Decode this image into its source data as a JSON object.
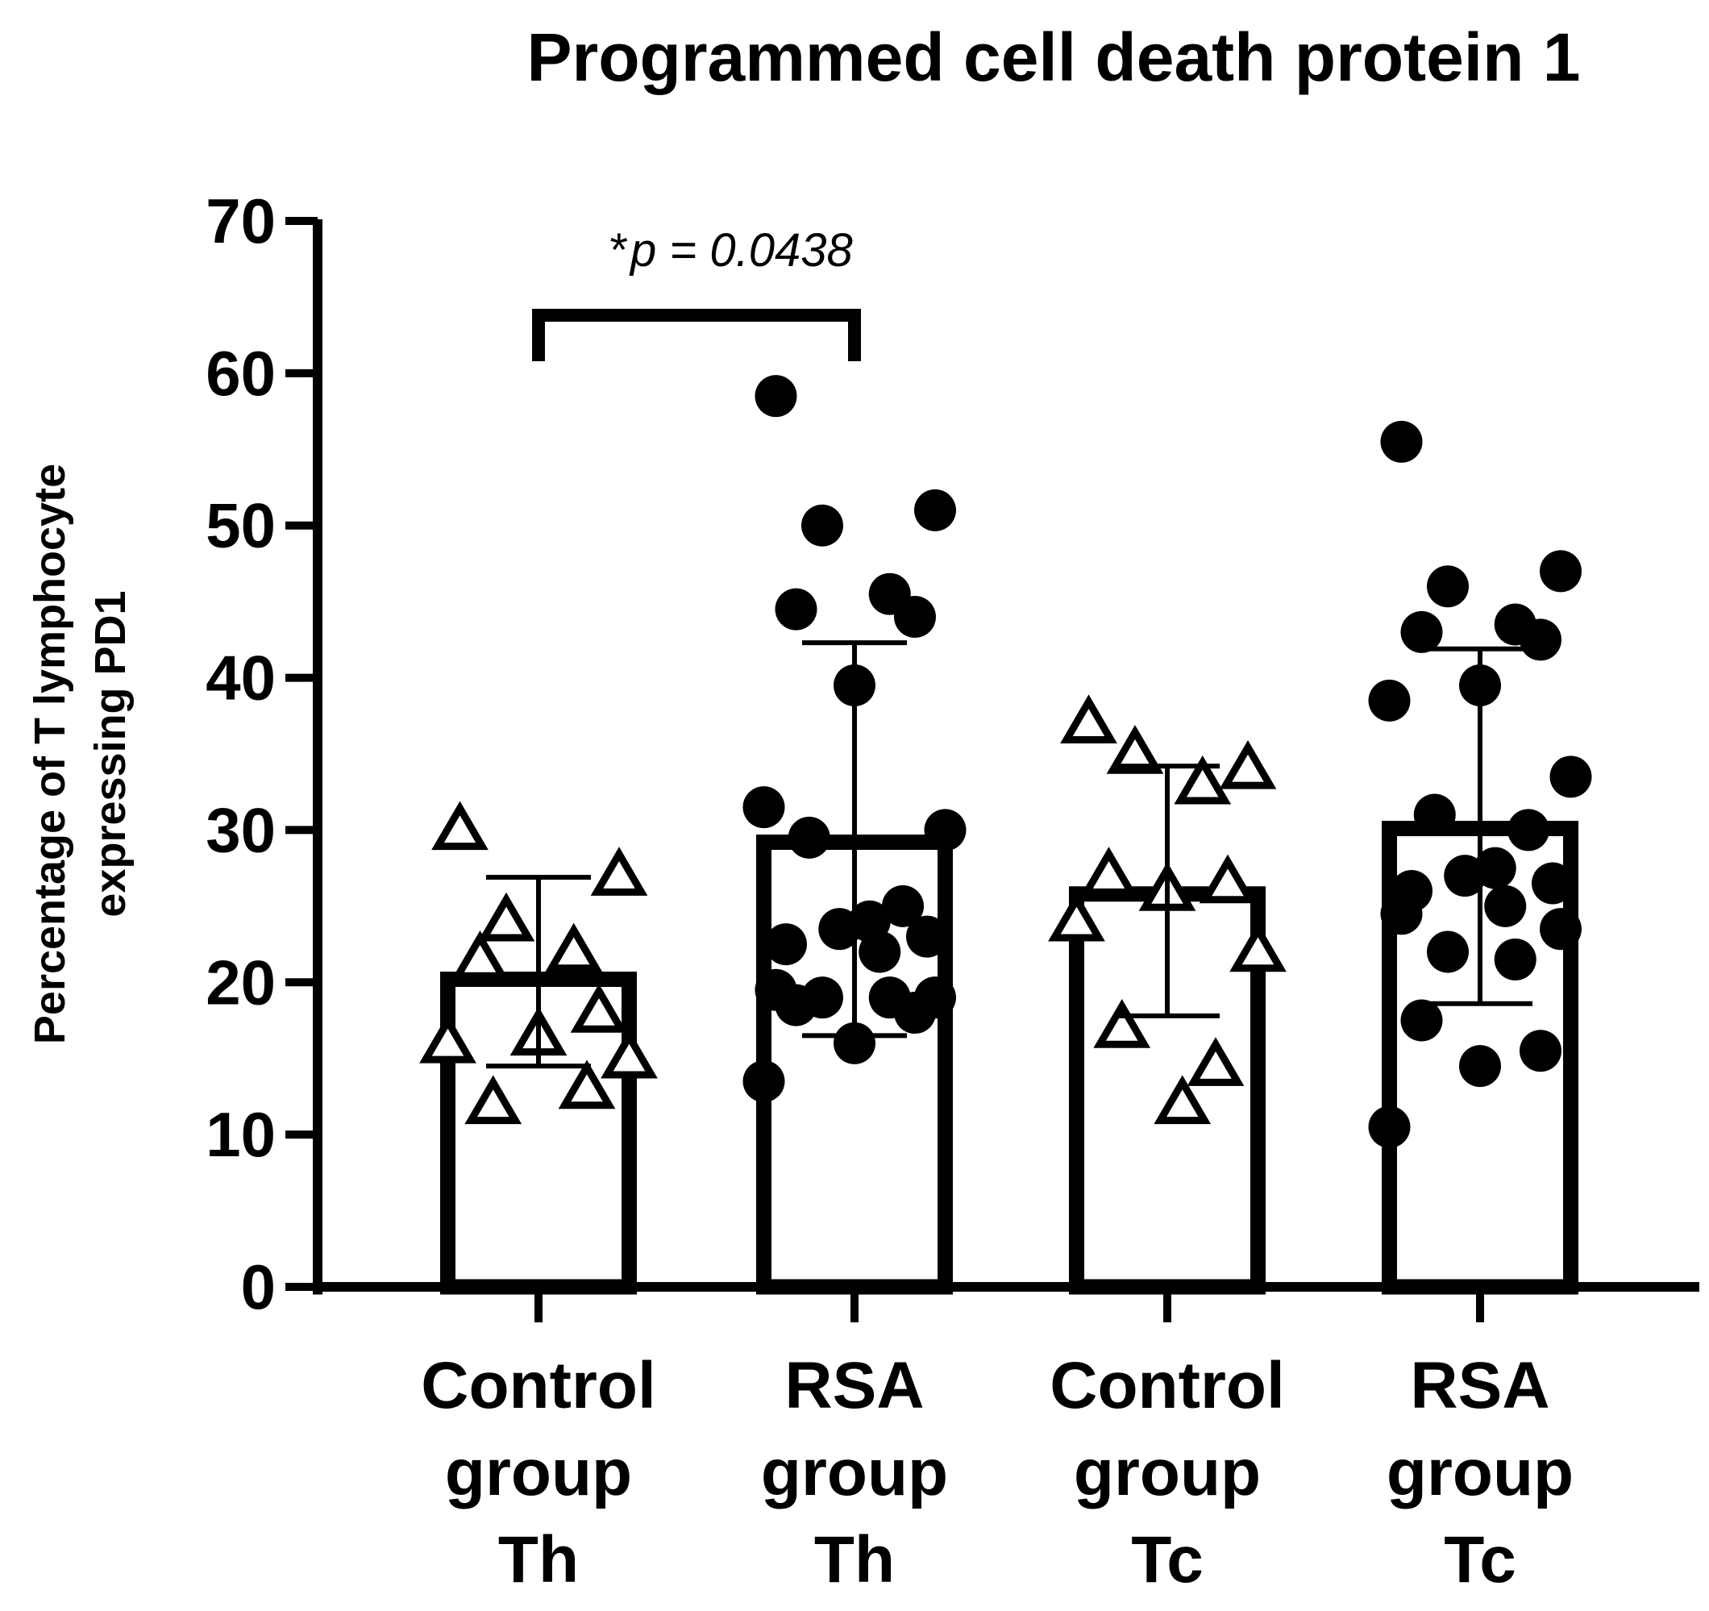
{
  "chart_data": {
    "type": "bar",
    "title": "Programmed cell death protein 1",
    "ylabel_lines": [
      "Percentage of T lymphocyte",
      "expressing PD1"
    ],
    "xlabel": "",
    "ylim": [
      0,
      70
    ],
    "yticks": [
      0,
      10,
      20,
      30,
      40,
      50,
      60,
      70
    ],
    "ytick_labels": [
      "0",
      "10",
      "20",
      "30",
      "40",
      "50",
      "60",
      "70"
    ],
    "grid": false,
    "categories": [
      {
        "lines": [
          "Control",
          "group",
          "Th"
        ],
        "value": 20.2,
        "sd_low": 14.5,
        "sd_high": 26.9,
        "marker": "triangle",
        "points": [
          30,
          27,
          24,
          22,
          21.5,
          18,
          16.5,
          16,
          15,
          12,
          13
        ]
      },
      {
        "lines": [
          "RSA",
          "group",
          "Th"
        ],
        "value": 29.2,
        "sd_low": 16.5,
        "sd_high": 42.3,
        "marker": "circle",
        "points": [
          58.5,
          51,
          50,
          45.5,
          44.5,
          44,
          39.5,
          31.5,
          30,
          29.5,
          25,
          24,
          23.5,
          23,
          22.5,
          22,
          19.5,
          19,
          19,
          19,
          18.5,
          18,
          16,
          13.5
        ]
      },
      {
        "lines": [
          "Control",
          "group",
          "Tc"
        ],
        "value": 25.8,
        "sd_low": 17.8,
        "sd_high": 34.2,
        "marker": "triangle",
        "points": [
          37,
          34,
          35,
          33,
          27,
          26.5,
          26,
          24,
          22,
          17,
          14.5,
          12
        ]
      },
      {
        "lines": [
          "RSA",
          "group",
          "Tc"
        ],
        "value": 30.1,
        "sd_low": 18.6,
        "sd_high": 41.9,
        "marker": "circle",
        "points": [
          55.5,
          47,
          46,
          43.5,
          43,
          42.5,
          39.5,
          38.5,
          33.5,
          31,
          30,
          27.5,
          27,
          26.5,
          26,
          25,
          24.5,
          23.5,
          22,
          21.5,
          17.5,
          15.5,
          14.5,
          10.5
        ]
      }
    ],
    "annotations": [
      {
        "text_star": "*",
        "text": "p = 0.0438",
        "from_category": 0,
        "to_category": 1,
        "bracket_y": 63
      }
    ]
  }
}
